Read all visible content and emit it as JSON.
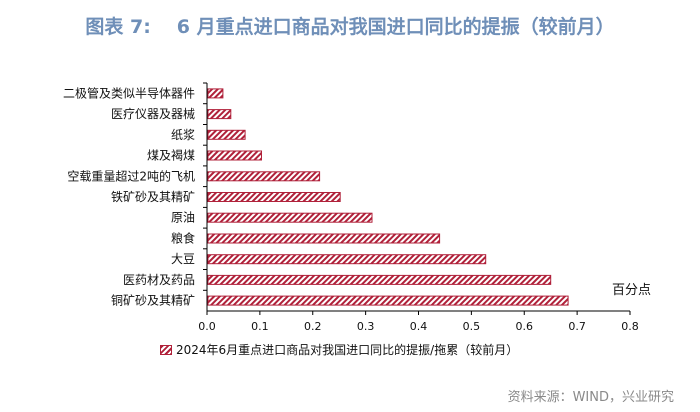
{
  "figure": {
    "label": "图表 7:",
    "title": "6 月重点进口商品对我国进口同比的提振（较前月）"
  },
  "source": "资料来源：WIND，兴业研究",
  "colors": {
    "bar": "#b0213a",
    "title": "#6f8fb8"
  },
  "chart_data": {
    "type": "bar",
    "orientation": "horizontal",
    "categories": [
      "二极管及类似半导体器件",
      "医疗仪器及器械",
      "纸浆",
      "煤及褐煤",
      "空载重量超过2吨的飞机",
      "铁矿砂及其精矿",
      "原油",
      "粮食",
      "大豆",
      "医药材及药品",
      "铜矿砂及其精矿"
    ],
    "series": [
      {
        "name": "2024年6月重点进口商品对我国进口同比的提振/拖累（较前月）",
        "values": [
          0.03,
          0.045,
          0.072,
          0.103,
          0.213,
          0.252,
          0.312,
          0.44,
          0.527,
          0.65,
          0.683
        ]
      }
    ],
    "xlim": [
      0.0,
      0.8
    ],
    "xticks": [
      "0.0",
      "0.1",
      "0.2",
      "0.3",
      "0.4",
      "0.5",
      "0.6",
      "0.7",
      "0.8"
    ],
    "unit_label": "百分点",
    "grid": false,
    "legend_position": "bottom"
  }
}
